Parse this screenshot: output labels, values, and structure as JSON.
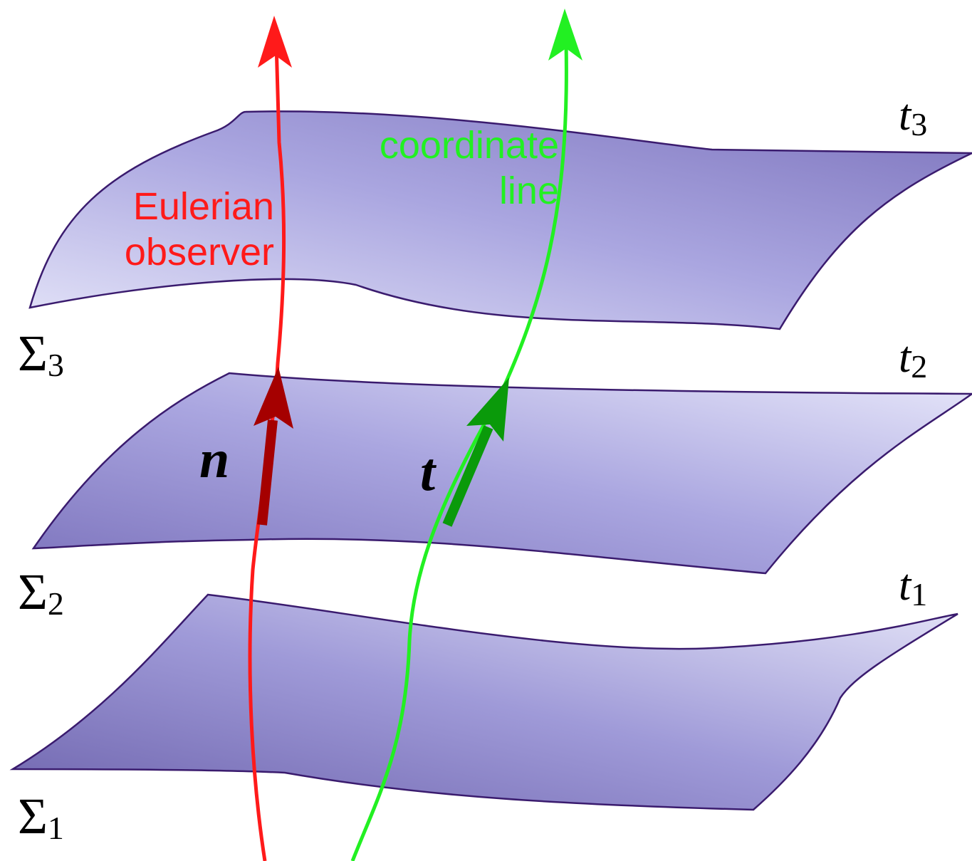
{
  "surfaces": [
    {
      "symbol": "Σ",
      "index": "3",
      "time": "t",
      "time_index": "3"
    },
    {
      "symbol": "Σ",
      "index": "2",
      "time": "t",
      "time_index": "2"
    },
    {
      "symbol": "Σ",
      "index": "1",
      "time": "t",
      "time_index": "1"
    }
  ],
  "curves": [
    {
      "label": [
        "Eulerian",
        "observer"
      ],
      "vector": "n"
    },
    {
      "label": [
        "coordinate",
        "line"
      ],
      "vector": "t"
    }
  ]
}
